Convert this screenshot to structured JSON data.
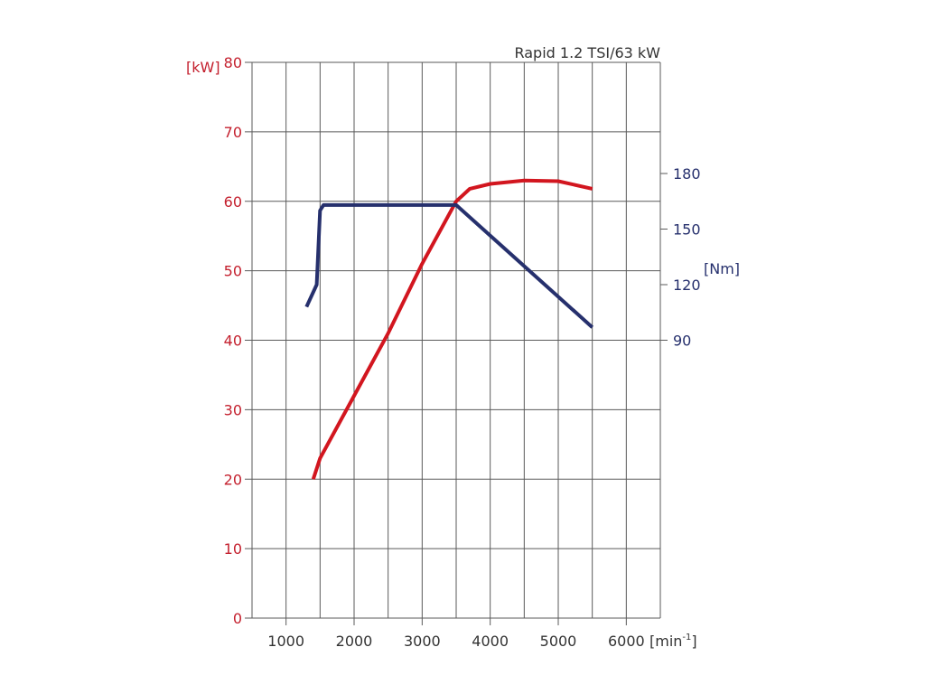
{
  "chart_data": {
    "type": "line",
    "title": "Rapid 1.2 TSI/63 kW",
    "xaxis": {
      "ticks": [
        1000,
        2000,
        3000,
        4000,
        5000,
        6000
      ],
      "unit_label": "[min",
      "unit_superscript": "-1",
      "unit_close": "]",
      "range": [
        500,
        6500
      ]
    },
    "yaxis_left": {
      "unit_label": "[kW]",
      "ticks": [
        0,
        10,
        20,
        30,
        40,
        50,
        60,
        70,
        80
      ],
      "range": [
        0,
        80
      ],
      "color": "#c4202e"
    },
    "yaxis_right": {
      "unit_label": "[Nm]",
      "ticks": [
        90,
        120,
        150,
        180
      ],
      "range": [
        -60,
        240
      ],
      "color": "#26306d"
    },
    "grid": true,
    "series": [
      {
        "id": "power",
        "axis": "left",
        "color": "#d2161f",
        "x": [
          1400,
          1500,
          2000,
          2500,
          3000,
          3500,
          3700,
          4000,
          4500,
          5000,
          5500
        ],
        "y": [
          20,
          23,
          32,
          41,
          51,
          60,
          61.8,
          62.5,
          63,
          62.9,
          61.8
        ]
      },
      {
        "id": "torque",
        "axis": "right",
        "color": "#26306d",
        "x": [
          1300,
          1450,
          1500,
          1550,
          3500,
          4500,
          5500
        ],
        "y": [
          108,
          120,
          160,
          163,
          163,
          130,
          97
        ]
      }
    ]
  }
}
